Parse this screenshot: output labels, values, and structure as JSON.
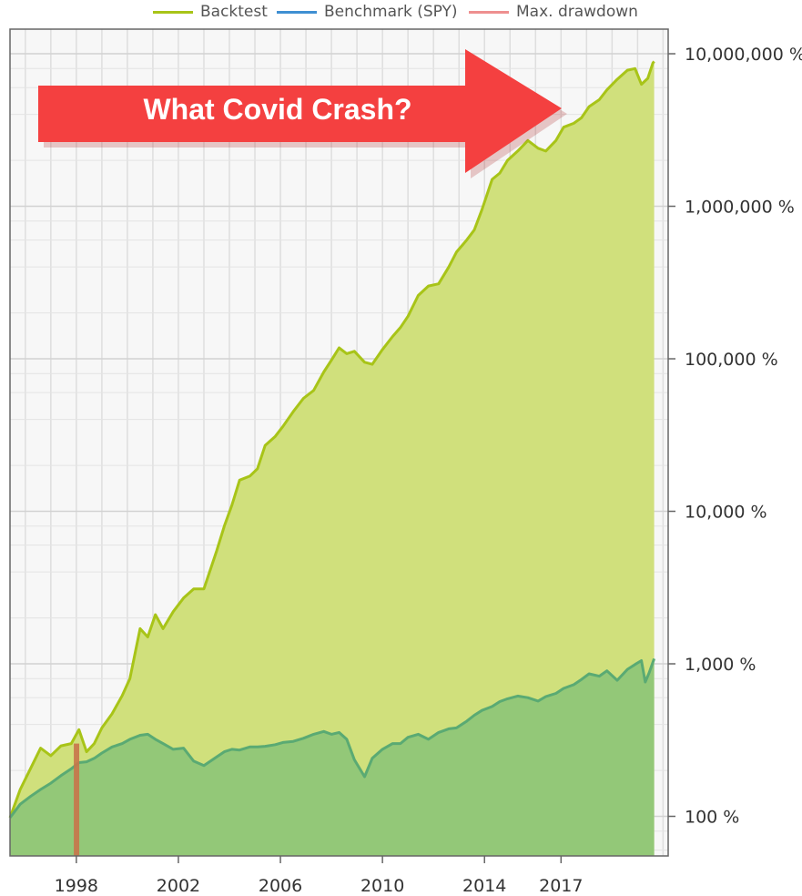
{
  "chart_data": {
    "type": "area",
    "yscale": "log",
    "ylim": [
      55,
      14500000
    ],
    "xlim": [
      1995.4,
      2021.2
    ],
    "grid": true,
    "legend_position": "top",
    "legend": [
      {
        "name": "Backtest",
        "color": "#a8c418"
      },
      {
        "name": "Benchmark (SPY)",
        "color": "#3f8fd2"
      },
      {
        "name": "Max. drawdown",
        "color": "#ee8f8f"
      }
    ],
    "y_ticks": [
      {
        "value": 10000000,
        "label": "10,000,000 %"
      },
      {
        "value": 1000000,
        "label": "1,000,000 %"
      },
      {
        "value": 100000,
        "label": "100,000 %"
      },
      {
        "value": 10000,
        "label": "10,000 %"
      },
      {
        "value": 1000,
        "label": "1,000 %"
      },
      {
        "value": 100,
        "label": "100 %"
      }
    ],
    "x_ticks": [
      {
        "value": 1998,
        "label": "1998"
      },
      {
        "value": 2002,
        "label": "2002"
      },
      {
        "value": 2006,
        "label": "2006"
      },
      {
        "value": 2010,
        "label": "2010"
      },
      {
        "value": 2014,
        "label": "2014"
      },
      {
        "value": 2017,
        "label": "2017"
      }
    ],
    "series": [
      {
        "name": "Backtest",
        "color": "#a8c418",
        "fill": "#d0e07c",
        "points": [
          [
            1995.4,
            98
          ],
          [
            1995.8,
            150
          ],
          [
            1996.2,
            205
          ],
          [
            1996.6,
            280
          ],
          [
            1997.0,
            250
          ],
          [
            1997.4,
            290
          ],
          [
            1997.8,
            300
          ],
          [
            1998.1,
            370
          ],
          [
            1998.4,
            265
          ],
          [
            1998.7,
            300
          ],
          [
            1999.0,
            380
          ],
          [
            1999.4,
            470
          ],
          [
            1999.8,
            620
          ],
          [
            2000.1,
            800
          ],
          [
            2000.5,
            1700
          ],
          [
            2000.8,
            1500
          ],
          [
            2001.1,
            2100
          ],
          [
            2001.4,
            1700
          ],
          [
            2001.8,
            2200
          ],
          [
            2002.2,
            2700
          ],
          [
            2002.6,
            3100
          ],
          [
            2003.0,
            3100
          ],
          [
            2003.5,
            5500
          ],
          [
            2003.8,
            8000
          ],
          [
            2004.1,
            11000
          ],
          [
            2004.4,
            16000
          ],
          [
            2004.8,
            17000
          ],
          [
            2005.1,
            19000
          ],
          [
            2005.4,
            27000
          ],
          [
            2005.8,
            31000
          ],
          [
            2006.1,
            36000
          ],
          [
            2006.5,
            45000
          ],
          [
            2006.9,
            55000
          ],
          [
            2007.3,
            62000
          ],
          [
            2007.7,
            82000
          ],
          [
            2008.0,
            98000
          ],
          [
            2008.3,
            118000
          ],
          [
            2008.6,
            108000
          ],
          [
            2008.9,
            112000
          ],
          [
            2009.3,
            95000
          ],
          [
            2009.6,
            92000
          ],
          [
            2010.0,
            115000
          ],
          [
            2010.4,
            140000
          ],
          [
            2010.7,
            160000
          ],
          [
            2011.0,
            190000
          ],
          [
            2011.4,
            260000
          ],
          [
            2011.8,
            300000
          ],
          [
            2012.2,
            310000
          ],
          [
            2012.6,
            400000
          ],
          [
            2012.9,
            500000
          ],
          [
            2013.3,
            600000
          ],
          [
            2013.6,
            700000
          ],
          [
            2013.9,
            950000
          ],
          [
            2014.3,
            1500000
          ],
          [
            2014.6,
            1650000
          ],
          [
            2014.9,
            2000000
          ],
          [
            2015.3,
            2300000
          ],
          [
            2015.7,
            2700000
          ],
          [
            2016.1,
            2400000
          ],
          [
            2016.4,
            2300000
          ],
          [
            2016.8,
            2700000
          ],
          [
            2017.1,
            3300000
          ],
          [
            2017.5,
            3500000
          ],
          [
            2017.8,
            3800000
          ],
          [
            2018.1,
            4500000
          ],
          [
            2018.5,
            5000000
          ],
          [
            2018.8,
            5800000
          ],
          [
            2019.2,
            6800000
          ],
          [
            2019.6,
            7800000
          ],
          [
            2019.9,
            8000000
          ],
          [
            2020.15,
            6300000
          ],
          [
            2020.4,
            6900000
          ],
          [
            2020.6,
            8700000
          ],
          [
            2020.65,
            8900000
          ]
        ]
      },
      {
        "name": "Benchmark (SPY)",
        "color": "#5aaa73",
        "fill": "#93c878",
        "points": [
          [
            1995.4,
            98
          ],
          [
            1995.8,
            120
          ],
          [
            1996.2,
            135
          ],
          [
            1996.6,
            150
          ],
          [
            1997.0,
            165
          ],
          [
            1997.4,
            185
          ],
          [
            1997.8,
            205
          ],
          [
            1998.1,
            225
          ],
          [
            1998.4,
            228
          ],
          [
            1998.7,
            240
          ],
          [
            1999.0,
            260
          ],
          [
            1999.4,
            285
          ],
          [
            1999.8,
            300
          ],
          [
            2000.1,
            320
          ],
          [
            2000.5,
            340
          ],
          [
            2000.8,
            345
          ],
          [
            2001.1,
            320
          ],
          [
            2001.4,
            300
          ],
          [
            2001.8,
            275
          ],
          [
            2002.2,
            280
          ],
          [
            2002.6,
            230
          ],
          [
            2003.0,
            215
          ],
          [
            2003.5,
            245
          ],
          [
            2003.8,
            265
          ],
          [
            2004.1,
            275
          ],
          [
            2004.4,
            272
          ],
          [
            2004.8,
            285
          ],
          [
            2005.1,
            285
          ],
          [
            2005.4,
            288
          ],
          [
            2005.8,
            295
          ],
          [
            2006.1,
            305
          ],
          [
            2006.5,
            310
          ],
          [
            2006.9,
            325
          ],
          [
            2007.3,
            345
          ],
          [
            2007.7,
            360
          ],
          [
            2008.0,
            345
          ],
          [
            2008.3,
            355
          ],
          [
            2008.6,
            320
          ],
          [
            2008.9,
            235
          ],
          [
            2009.3,
            182
          ],
          [
            2009.6,
            240
          ],
          [
            2010.0,
            275
          ],
          [
            2010.4,
            300
          ],
          [
            2010.7,
            300
          ],
          [
            2011.0,
            330
          ],
          [
            2011.4,
            345
          ],
          [
            2011.8,
            320
          ],
          [
            2012.2,
            355
          ],
          [
            2012.6,
            375
          ],
          [
            2012.9,
            380
          ],
          [
            2013.3,
            420
          ],
          [
            2013.6,
            460
          ],
          [
            2013.9,
            495
          ],
          [
            2014.3,
            525
          ],
          [
            2014.6,
            565
          ],
          [
            2014.9,
            590
          ],
          [
            2015.3,
            615
          ],
          [
            2015.7,
            600
          ],
          [
            2016.1,
            570
          ],
          [
            2016.4,
            610
          ],
          [
            2016.8,
            640
          ],
          [
            2017.1,
            690
          ],
          [
            2017.5,
            730
          ],
          [
            2017.8,
            790
          ],
          [
            2018.1,
            860
          ],
          [
            2018.5,
            830
          ],
          [
            2018.8,
            900
          ],
          [
            2019.2,
            780
          ],
          [
            2019.6,
            920
          ],
          [
            2019.9,
            990
          ],
          [
            2020.15,
            1050
          ],
          [
            2020.3,
            760
          ],
          [
            2020.45,
            870
          ],
          [
            2020.65,
            1080
          ]
        ]
      }
    ],
    "max_drawdown": {
      "x_start": 1997.9,
      "x_end": 1998.05,
      "color": "#c8744a"
    },
    "annotations": [
      {
        "text": "What Covid Crash?",
        "type": "arrow",
        "color": "#f44040"
      }
    ]
  }
}
